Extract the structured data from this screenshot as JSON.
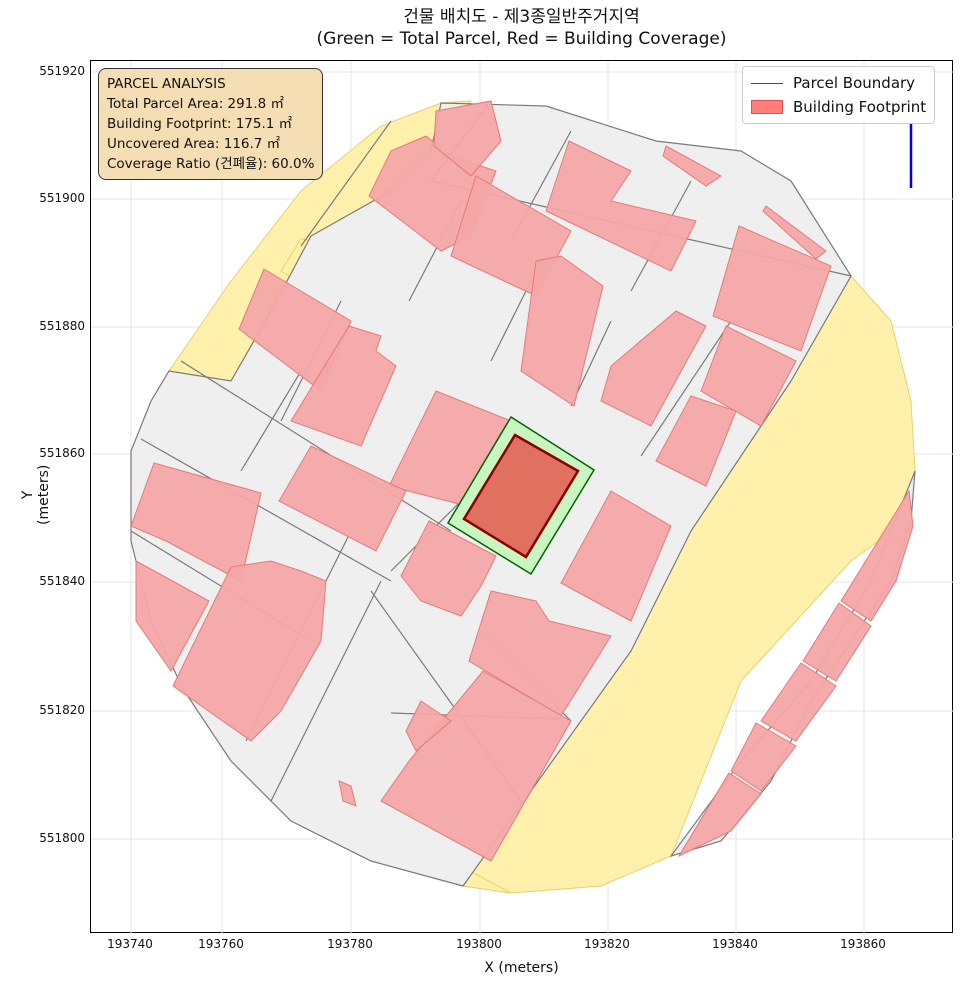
{
  "title_line1": "건물 배치도 - 제3종일반주거지역",
  "title_line2": "(Green = Total Parcel, Red = Building Coverage)",
  "info": {
    "heading": "PARCEL ANALYSIS",
    "total_area": "Total Parcel Area: 291.8 ㎡",
    "footprint": "Building Footprint: 175.1 ㎡",
    "uncovered": "Uncovered Area: 116.7 ㎡",
    "coverage": "Coverage Ratio (건폐율): 60.0%"
  },
  "legend": {
    "parcel": "Parcel Boundary",
    "building": "Building Footprint"
  },
  "axes": {
    "xlabel": "X (meters)",
    "ylabel": "Y (meters)",
    "xticks": [
      "193740",
      "193760",
      "193780",
      "193800",
      "193820",
      "193840",
      "193860"
    ],
    "yticks": [
      "551920",
      "551900",
      "551880",
      "551860",
      "551840",
      "551820",
      "551800"
    ]
  },
  "colors": {
    "parcel_fill": "#c8f5c0",
    "parcel_edge": "#006400",
    "building_fill": "#e07060",
    "building_edge": "#8b0000",
    "context_building": "#f4a6a6",
    "context_lot": "#efefef",
    "road": "#fff0a8",
    "north_arrow": "#0000dd"
  }
}
